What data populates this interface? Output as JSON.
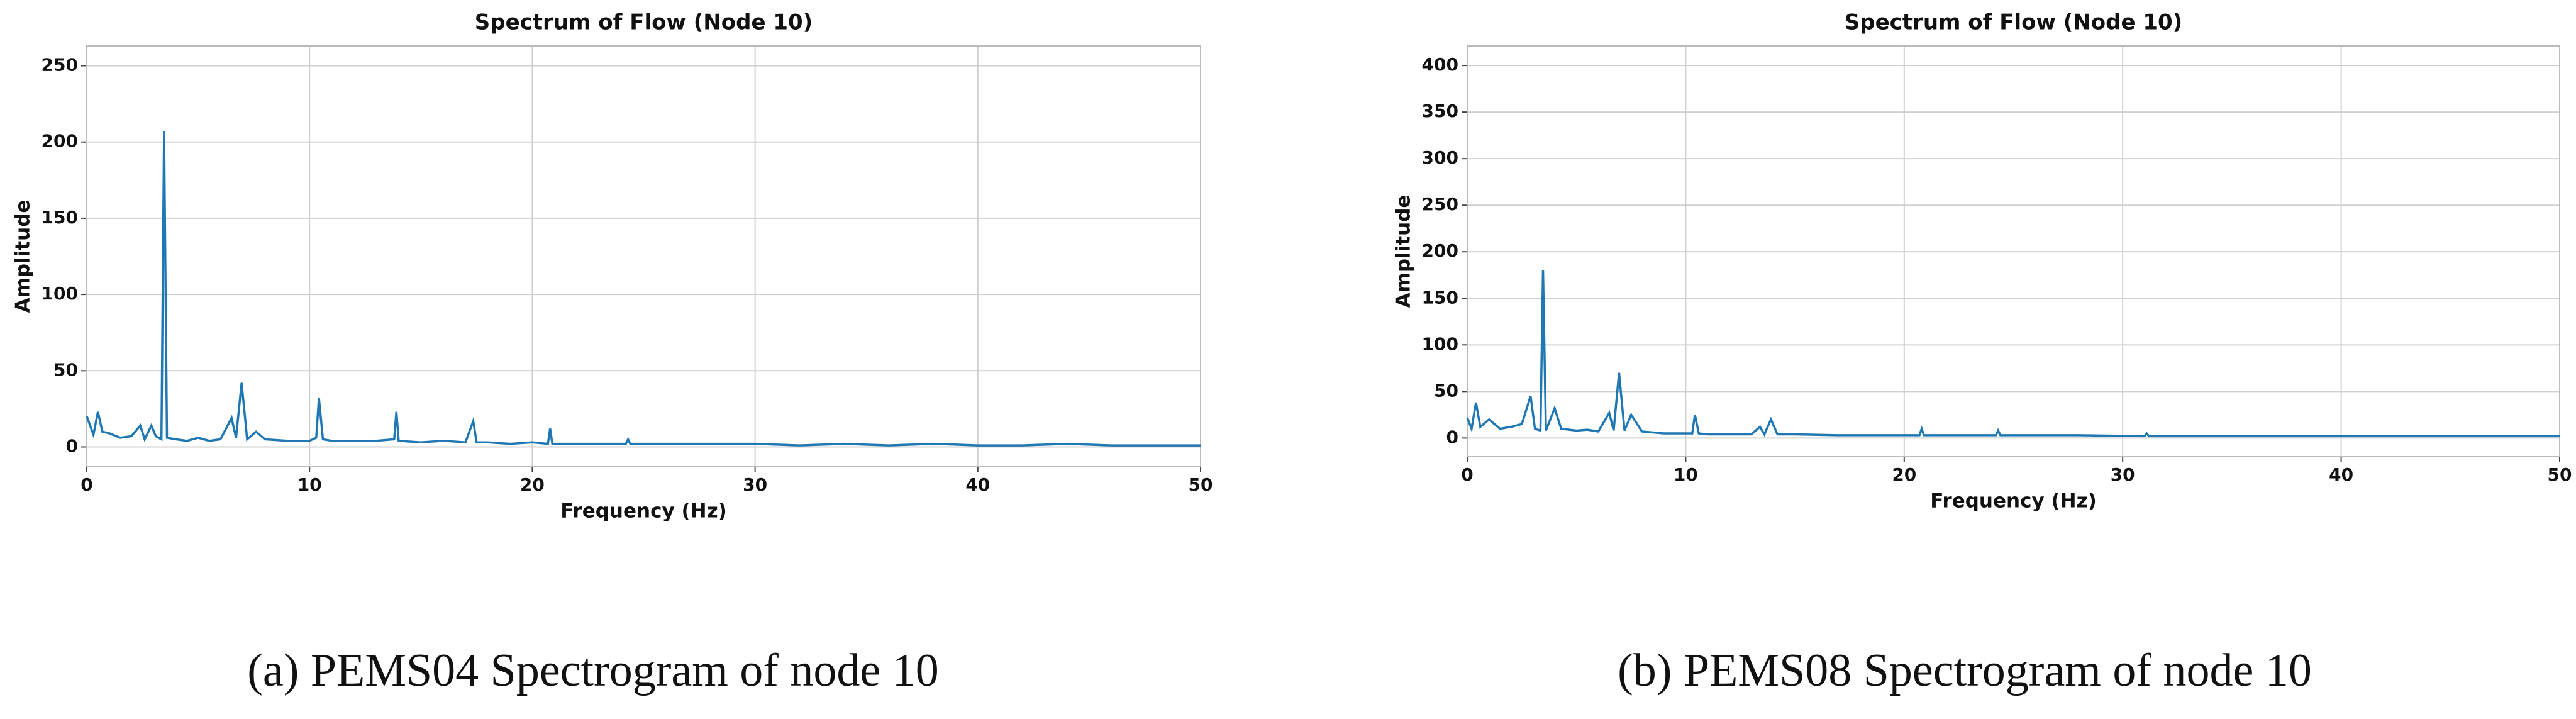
{
  "chart_data": [
    {
      "type": "line",
      "title": "Spectrum of Flow (Node 10)",
      "x_label": "Frequency (Hz)",
      "y_label": "Amplitude",
      "caption": "(a) PEMS04 Spectrogram of node 10",
      "xlim": [
        0,
        50
      ],
      "xticks": [
        0,
        10,
        20,
        30,
        40,
        50
      ],
      "ylim": [
        -13,
        263
      ],
      "yticks": [
        0,
        50,
        100,
        150,
        200,
        250
      ],
      "grid": true,
      "series": [
        {
          "color": "#1f77b4",
          "x": [
            0,
            0.3,
            0.5,
            0.7,
            1,
            1.5,
            2,
            2.4,
            2.6,
            2.9,
            3.1,
            3.35,
            3.47,
            3.6,
            4,
            4.5,
            5,
            5.5,
            6,
            6.5,
            6.7,
            6.95,
            7.2,
            7.6,
            8,
            9,
            10,
            10.3,
            10.42,
            10.6,
            11,
            12,
            13,
            13.8,
            13.9,
            14,
            15,
            16,
            17,
            17.35,
            17.5,
            18,
            19,
            20,
            20.7,
            20.8,
            20.9,
            22,
            24.2,
            24.3,
            24.4,
            26,
            28,
            30,
            32,
            34,
            36,
            38,
            40,
            42,
            44,
            46,
            48,
            50
          ],
          "values": [
            20,
            8,
            23,
            10,
            9,
            6,
            7,
            14,
            5,
            14,
            7,
            5,
            207,
            6,
            5,
            4,
            6,
            4,
            5,
            19,
            6,
            42,
            5,
            10,
            5,
            4,
            4,
            6,
            32,
            5,
            4,
            4,
            4,
            5,
            23,
            4,
            3,
            4,
            3,
            17,
            3,
            3,
            2,
            3,
            2,
            12,
            2,
            2,
            2,
            5,
            2,
            2,
            2,
            2,
            1,
            2,
            1,
            2,
            1,
            1,
            2,
            1,
            1,
            1
          ]
        }
      ]
    },
    {
      "type": "line",
      "title": "Spectrum of Flow (Node 10)",
      "x_label": "Frequency (Hz)",
      "y_label": "Amplitude",
      "caption": "(b) PEMS08 Spectrogram of node 10",
      "xlim": [
        0,
        50
      ],
      "xticks": [
        0,
        10,
        20,
        30,
        40,
        50
      ],
      "ylim": [
        -20,
        421
      ],
      "yticks": [
        0,
        50,
        100,
        150,
        200,
        250,
        300,
        350,
        400
      ],
      "grid": true,
      "series": [
        {
          "color": "#1f77b4",
          "x": [
            0,
            0.2,
            0.4,
            0.6,
            1,
            1.5,
            2,
            2.5,
            2.9,
            3.1,
            3.35,
            3.47,
            3.6,
            4,
            4.3,
            5,
            5.5,
            6,
            6.5,
            6.7,
            6.95,
            7.2,
            7.5,
            8,
            9,
            10,
            10.3,
            10.42,
            10.6,
            11,
            12,
            13,
            13.4,
            13.6,
            13.9,
            14.2,
            15,
            17,
            20,
            20.7,
            20.8,
            20.9,
            22,
            24.2,
            24.3,
            24.4,
            26,
            28,
            31,
            31.1,
            31.2,
            34,
            38,
            42,
            46,
            50
          ],
          "values": [
            22,
            10,
            38,
            12,
            20,
            10,
            12,
            15,
            45,
            10,
            8,
            180,
            8,
            32,
            10,
            8,
            9,
            7,
            27,
            8,
            70,
            8,
            25,
            7,
            5,
            5,
            5,
            25,
            5,
            4,
            4,
            4,
            12,
            4,
            20,
            4,
            4,
            3,
            3,
            3,
            10,
            3,
            3,
            3,
            8,
            3,
            3,
            3,
            2,
            5,
            2,
            2,
            2,
            2,
            2,
            2
          ]
        }
      ]
    }
  ]
}
